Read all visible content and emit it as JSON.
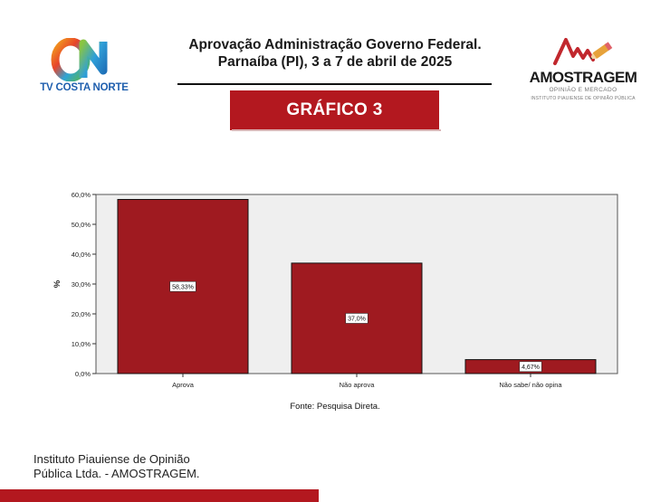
{
  "header": {
    "title_line1": "Aprovação Administração Governo Federal.",
    "title_line2": "Parnaíba (PI), 3 a 7 de abril de 2025"
  },
  "logo_left": {
    "mark": "ON",
    "label": "TV COSTA NORTE"
  },
  "logo_right": {
    "brand": "AMOSTRAGEM",
    "tagline": "OPINIÃO E MERCADO",
    "institute": "INSTITUTO PIAUIENSE DE OPINIÃO PÚBLICA"
  },
  "banner": {
    "label": "GRÁFICO 3"
  },
  "chart_data": {
    "type": "bar",
    "categories": [
      "Aprova",
      "Não aprova",
      "Não sabe/ não opina"
    ],
    "values": [
      58.33,
      37.0,
      4.67
    ],
    "value_labels": [
      "58,33%",
      "37,0%",
      "4,67%"
    ],
    "ylabel": "%",
    "ylim": [
      0,
      60
    ],
    "yticks": [
      0,
      10,
      20,
      30,
      40,
      50,
      60
    ],
    "ytick_labels": [
      "0,0%",
      "10,0%",
      "20,0%",
      "30,0%",
      "40,0%",
      "50,0%",
      "60,0%"
    ],
    "bar_color": "#9f1a20",
    "plot_background": "#efefef",
    "grid": false,
    "legend": "none"
  },
  "source": "Fonte: Pesquisa Direta.",
  "footer": {
    "line1": "Instituto Piauiense de Opinião",
    "line2": "Pública Ltda. - AMOSTRAGEM."
  },
  "colors": {
    "accent": "#b3181f"
  }
}
